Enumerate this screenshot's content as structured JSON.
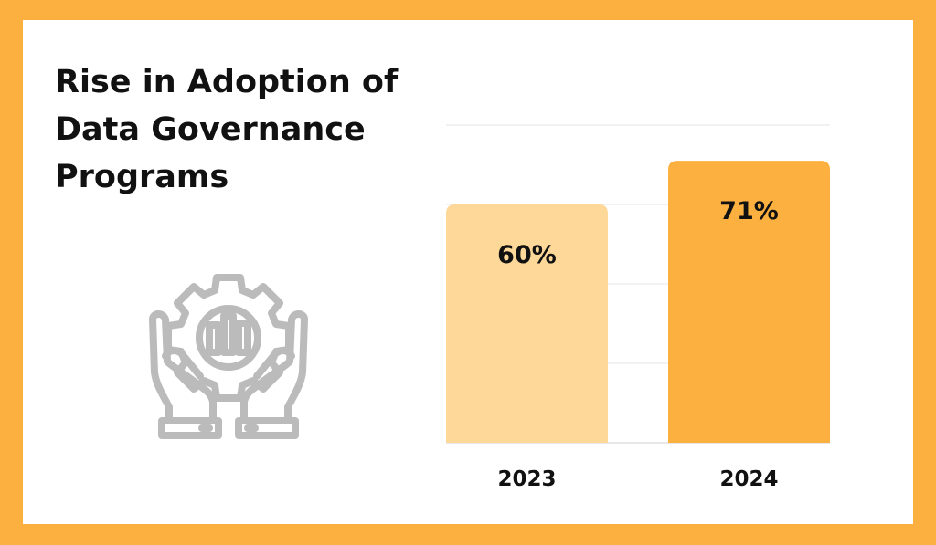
{
  "colors": {
    "frame": "#FBB040",
    "bar_2023": "#FDD898",
    "bar_2024": "#FBB040",
    "icon": "#BBBBBB"
  },
  "chart_data": {
    "type": "bar",
    "title": "Rise in Adoption of Data Governance Programs",
    "title_lines": [
      "Rise in Adoption of",
      "Data Governance",
      "Programs"
    ],
    "categories": [
      "2023",
      "2024"
    ],
    "values": [
      60,
      71
    ],
    "value_labels": [
      "60%",
      "71%"
    ],
    "unit": "%",
    "ylim": [
      0,
      80
    ],
    "grid": true,
    "xlabel": "",
    "ylabel": ""
  },
  "illustration": {
    "icon": "hands-holding-gear-chart-icon"
  }
}
